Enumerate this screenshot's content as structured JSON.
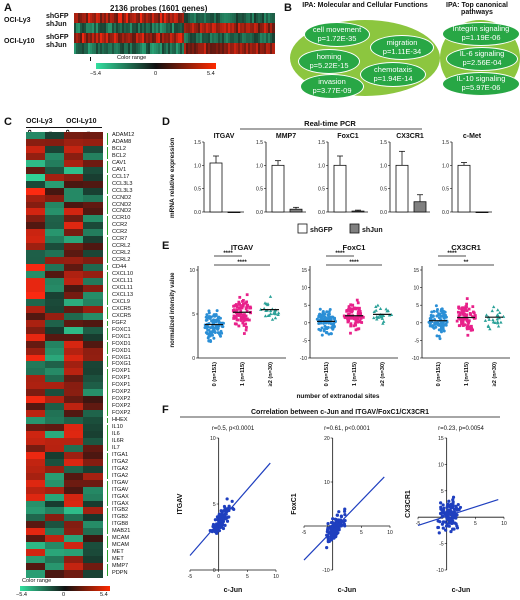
{
  "panelA": {
    "label": "A",
    "title": "2136 probes (1601 genes)",
    "rows": [
      {
        "cell_line": "OCI-Ly3",
        "conditions": [
          "shGFP",
          "shJun"
        ]
      },
      {
        "cell_line": "OCI-Ly10",
        "conditions": [
          "shGFP",
          "shJun"
        ]
      }
    ],
    "color_range_label": "Color range",
    "color_range_min": "−5.4",
    "color_range_mid": "0",
    "color_range_max": "5.4"
  },
  "panelB": {
    "label": "B",
    "left_title": "IPA: Molecular and Cellular Functions",
    "right_title": "IPA: Top canonical pathways",
    "functions": [
      {
        "name": "cell movement",
        "p": "p=1.72E-35"
      },
      {
        "name": "migration",
        "p": "p=1.11E-34"
      },
      {
        "name": "homing",
        "p": "p=5.22E-15"
      },
      {
        "name": "chemotaxis",
        "p": "p=1.94E-14"
      },
      {
        "name": "invasion",
        "p": "p=3.77E-09"
      }
    ],
    "pathways": [
      {
        "name": "Integrin signaling",
        "p": "p=1.19E-06"
      },
      {
        "name": "IL-6 signaling",
        "p": "p=2.56E-04"
      },
      {
        "name": "IL-10 signaling",
        "p": "p=5.97E-06"
      }
    ]
  },
  "panelC": {
    "label": "C",
    "cell_lines": [
      "OCI-Ly3",
      "OCI-Ly10"
    ],
    "conditions": [
      "shGFP",
      "shJun",
      "shGFP",
      "shJun"
    ],
    "genes": [
      "ADAM12",
      "ADAM8",
      "BCL2",
      "BCL2",
      "CAV1",
      "CAV1",
      "CCL17",
      "CCL3L3",
      "CCL3L3",
      "CCND2",
      "CCND2",
      "CCND2",
      "CCR10",
      "CCR2",
      "CCR2",
      "CCR7",
      "CCRL2",
      "CCRL2",
      "CCRL2",
      "CD44",
      "CXCL10",
      "CXCL11",
      "CXCL11",
      "CXCL13",
      "CXCL9",
      "CXCR5",
      "CXCR5",
      "FGF2",
      "FOXC1",
      "FOXC1",
      "FOXD1",
      "FOXD1",
      "FOXG1",
      "FOXG1",
      "FOXP1",
      "FOXP1",
      "FOXP1",
      "FOXP2",
      "FOXP2",
      "FOXP2",
      "FOXP2",
      "HHEX",
      "IL10",
      "IL6",
      "IL6R",
      "IL7",
      "ITGA1",
      "ITGA2",
      "ITGA2",
      "ITGA2",
      "ITGAV",
      "ITGAV",
      "ITGAX",
      "ITGAX",
      "ITGB2",
      "ITGB2",
      "ITGB8",
      "MAB21",
      "MCAM",
      "MCAM",
      "MET",
      "MET",
      "MMP7",
      "PDPN"
    ],
    "color_range_label": "Color range",
    "color_range_min": "−5.4",
    "color_range_mid": "0",
    "color_range_max": "5.4"
  },
  "panelD": {
    "label": "D",
    "title": "Real-time PCR",
    "ylabel": "mRNA relative expression",
    "legend": [
      {
        "name": "shGFP",
        "color": "#ffffff"
      },
      {
        "name": "shJun",
        "color": "#808080"
      }
    ]
  },
  "panelE": {
    "label": "E",
    "ylabel": "normalized intensity value",
    "xlabel": "number of extranodal sites",
    "colors": [
      "#2b8fd6",
      "#e8218a",
      "#2aa198"
    ]
  },
  "panelF": {
    "label": "F",
    "title": "Correlation between c-Jun and ITGAV/FoxC1/CX3CR1",
    "point_color": "#1f3fbf"
  },
  "chart_data": [
    {
      "id": "D-ITGAV",
      "type": "bar",
      "title": "ITGAV",
      "categories": [
        "shGFP",
        "shJun"
      ],
      "values": [
        1.05,
        0.0
      ],
      "errors": [
        0.15,
        0.0
      ],
      "ylim": [
        0,
        1.5
      ],
      "yticks": [
        "0.0",
        "0.5",
        "1.0",
        "1.5"
      ]
    },
    {
      "id": "D-MMP7",
      "type": "bar",
      "title": "MMP7",
      "categories": [
        "shGFP",
        "shJun"
      ],
      "values": [
        1.0,
        0.06
      ],
      "errors": [
        0.1,
        0.04
      ],
      "ylim": [
        0,
        1.5
      ],
      "yticks": [
        "0.0",
        "0.5",
        "1.0",
        "1.5"
      ]
    },
    {
      "id": "D-FoxC1",
      "type": "bar",
      "title": "FoxC1",
      "categories": [
        "shGFP",
        "shJun"
      ],
      "values": [
        1.0,
        0.02
      ],
      "errors": [
        0.2,
        0.02
      ],
      "ylim": [
        0,
        1.5
      ],
      "yticks": [
        "0.0",
        "0.5",
        "1.0",
        "1.5"
      ]
    },
    {
      "id": "D-CX3CR1",
      "type": "bar",
      "title": "CX3CR1",
      "categories": [
        "shGFP",
        "shJun"
      ],
      "values": [
        1.0,
        0.22
      ],
      "errors": [
        0.3,
        0.15
      ],
      "ylim": [
        0,
        1.5
      ],
      "yticks": [
        "0.0",
        "0.5",
        "1.0",
        "1.5"
      ]
    },
    {
      "id": "D-c-Met",
      "type": "bar",
      "title": "c-Met",
      "categories": [
        "shGFP",
        "shJun"
      ],
      "values": [
        1.0,
        0.0
      ],
      "errors": [
        0.06,
        0.0
      ],
      "ylim": [
        0,
        1.5
      ],
      "yticks": [
        "0.0",
        "0.5",
        "1.0",
        "1.5"
      ]
    },
    {
      "id": "E-ITGAV",
      "type": "scatter",
      "title": "ITGAV",
      "categories": [
        "0 (n=151)",
        "1 (n=115)",
        "≥2 (n=30)"
      ],
      "medians": [
        3.8,
        5.2,
        5.5
      ],
      "ranges": [
        [
          1.2,
          7.2
        ],
        [
          2.2,
          8.6
        ],
        [
          3.2,
          8.2
        ]
      ],
      "ylim": [
        0,
        10
      ],
      "yticks": [
        "0",
        "5",
        "10"
      ],
      "significance": [
        {
          "pair": [
            0,
            1
          ],
          "label": "****"
        },
        {
          "pair": [
            0,
            2
          ],
          "label": "****"
        }
      ]
    },
    {
      "id": "E-FoxC1",
      "type": "scatter",
      "title": "FoxC1",
      "categories": [
        "0 (n=151)",
        "1 (n=115)",
        "≥2 (n=30)"
      ],
      "medians": [
        0.4,
        2.0,
        2.4
      ],
      "ranges": [
        [
          -6.5,
          6.0
        ],
        [
          -4.0,
          9.0
        ],
        [
          -2.0,
          7.0
        ]
      ],
      "ylim": [
        -10,
        15
      ],
      "yticks": [
        "-10",
        "-5",
        "0",
        "5",
        "10",
        "15"
      ],
      "significance": [
        {
          "pair": [
            0,
            1
          ],
          "label": "****"
        },
        {
          "pair": [
            0,
            2
          ],
          "label": "****"
        }
      ]
    },
    {
      "id": "E-CX3CR1",
      "type": "scatter",
      "title": "CX3CR1",
      "categories": [
        "0 (n=151)",
        "1 (n=115)",
        "≥2 (n=30)"
      ],
      "medians": [
        0.6,
        1.5,
        1.6
      ],
      "ranges": [
        [
          -4.5,
          9.0
        ],
        [
          -4.5,
          11.0
        ],
        [
          -3.0,
          7.0
        ]
      ],
      "ylim": [
        -10,
        15
      ],
      "yticks": [
        "-10",
        "-5",
        "0",
        "5",
        "10",
        "15"
      ],
      "significance": [
        {
          "pair": [
            0,
            1
          ],
          "label": "****"
        },
        {
          "pair": [
            0,
            2
          ],
          "label": "**"
        }
      ]
    },
    {
      "id": "F-ITGAV",
      "type": "scatter",
      "title": "r=0.5, p<0.0001",
      "xlabel": "c-Jun",
      "ylabel": "ITGAV",
      "xlim": [
        -5,
        10
      ],
      "ylim": [
        0,
        10
      ],
      "xticks": [
        "-5",
        "0",
        "5",
        "10"
      ],
      "yticks": [
        "0",
        "5",
        "10"
      ],
      "fit": {
        "slope": 0.5,
        "intercept": 3.6
      }
    },
    {
      "id": "F-FoxC1",
      "type": "scatter",
      "title": "r=0.61, p<0.0001",
      "xlabel": "c-Jun",
      "ylabel": "FoxC1",
      "xlim": [
        -5,
        10
      ],
      "ylim": [
        -10,
        20
      ],
      "xticks": [
        "-5",
        "0",
        "5",
        "10"
      ],
      "yticks": [
        "-10",
        "0",
        "10",
        "20"
      ],
      "fit": {
        "slope": 1.35,
        "intercept": -1.0
      }
    },
    {
      "id": "F-CX3CR1",
      "type": "scatter",
      "title": "r=0.23, p=0.0054",
      "xlabel": "c-Jun",
      "ylabel": "CX3CR1",
      "xlim": [
        -5,
        10
      ],
      "ylim": [
        -10,
        15
      ],
      "xticks": [
        "-5",
        "0",
        "5",
        "10"
      ],
      "yticks": [
        "-10",
        "-5",
        "0",
        "5",
        "10",
        "15"
      ],
      "fit": {
        "slope": 0.35,
        "intercept": 0.2
      }
    }
  ]
}
